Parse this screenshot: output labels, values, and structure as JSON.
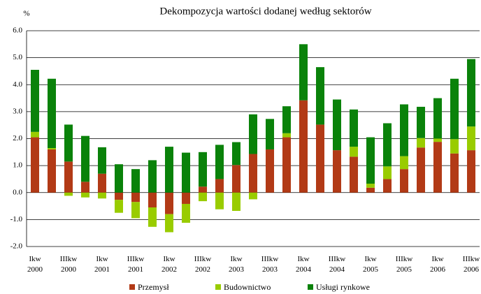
{
  "chart_data": {
    "type": "stacked_bar",
    "title": "Dekompozycja wartości dodanej według sektorów",
    "unit": "%",
    "categories": [
      [
        "Ikw",
        "2000"
      ],
      null,
      [
        "IIIkw",
        "2000"
      ],
      null,
      [
        "Ikw",
        "2001"
      ],
      null,
      [
        "IIIkw",
        "2001"
      ],
      null,
      [
        "Ikw",
        "2002"
      ],
      null,
      [
        "IIIkw",
        "2002"
      ],
      null,
      [
        "Ikw",
        "2003"
      ],
      null,
      [
        "IIIkw",
        "2003"
      ],
      null,
      [
        "Ikw",
        "2004"
      ],
      null,
      [
        "IIIkw",
        "2004"
      ],
      null,
      [
        "Ikw",
        "2005"
      ],
      null,
      [
        "IIIkw",
        "2005"
      ],
      null,
      [
        "Ikw",
        "2006"
      ],
      null,
      [
        "IIIkw",
        "2006"
      ]
    ],
    "series": [
      {
        "name": "Przemysł",
        "color": "#b23a16",
        "values": [
          2.05,
          1.6,
          1.15,
          0.4,
          0.7,
          -0.27,
          -0.35,
          -0.55,
          -0.8,
          -0.42,
          0.22,
          0.5,
          1.02,
          1.43,
          1.6,
          2.05,
          3.42,
          2.52,
          1.57,
          1.33,
          0.18,
          0.5,
          0.87,
          1.67,
          1.88,
          1.45,
          1.57
        ]
      },
      {
        "name": "Budownictwo",
        "color": "#99cc00",
        "values": [
          0.2,
          0.05,
          -0.12,
          -0.18,
          -0.22,
          -0.48,
          -0.6,
          -0.72,
          -0.67,
          -0.7,
          -0.32,
          -0.62,
          -0.68,
          -0.25,
          0,
          0.15,
          0,
          0,
          0,
          0.37,
          0.15,
          0.47,
          0.48,
          0.35,
          0.12,
          0.53,
          0.88
        ]
      },
      {
        "name": "Usługi rynkowe",
        "color": "#0a820a",
        "values": [
          2.3,
          2.57,
          1.37,
          1.7,
          0.98,
          1.05,
          0.87,
          1.2,
          1.7,
          1.48,
          1.28,
          1.27,
          0.85,
          1.47,
          1.13,
          1.0,
          2.08,
          2.13,
          1.88,
          1.38,
          1.72,
          1.6,
          1.92,
          1.16,
          1.5,
          2.24,
          2.5
        ]
      }
    ],
    "ylim": [
      -2,
      6
    ],
    "yticks": [
      {
        "value": -2,
        "label": "-2.0"
      },
      {
        "value": -1,
        "label": "-1.0"
      },
      {
        "value": 0,
        "label": "0.0"
      },
      {
        "value": 1,
        "label": "1.0"
      },
      {
        "value": 2,
        "label": "2.0"
      },
      {
        "value": 3,
        "label": "3.0"
      },
      {
        "value": 4,
        "label": "4.0"
      },
      {
        "value": 5,
        "label": "5.0"
      },
      {
        "value": 6,
        "label": "6.0"
      }
    ],
    "grid": true
  }
}
